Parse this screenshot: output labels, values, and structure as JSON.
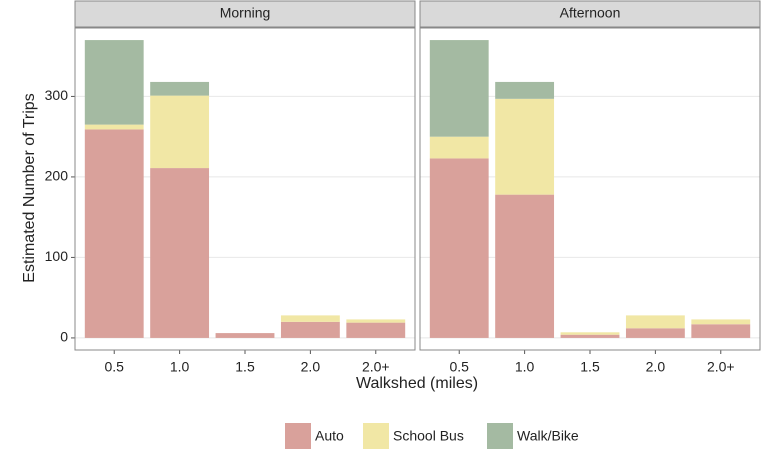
{
  "x_label": "Walkshed (miles)",
  "y_label": "Estimated Number of Trips",
  "chart_data": [
    {
      "type": "bar",
      "stacked": true,
      "title": "Morning",
      "categories": [
        "0.5",
        "1.0",
        "1.5",
        "2.0",
        "2.0+"
      ],
      "series": [
        {
          "name": "Auto",
          "color": "#d9a19b",
          "values": [
            259,
            211,
            6,
            20,
            19
          ]
        },
        {
          "name": "School Bus",
          "color": "#f1e7a5",
          "values": [
            6,
            90,
            0,
            8,
            4
          ]
        },
        {
          "name": "Walk/Bike",
          "color": "#a4baa2",
          "values": [
            105,
            17,
            0,
            0,
            0
          ]
        }
      ],
      "ylim": [
        -15,
        385
      ],
      "yticks": [
        0,
        100,
        200,
        300
      ],
      "grid": true
    },
    {
      "type": "bar",
      "stacked": true,
      "title": "Afternoon",
      "categories": [
        "0.5",
        "1.0",
        "1.5",
        "2.0",
        "2.0+"
      ],
      "series": [
        {
          "name": "Auto",
          "color": "#d9a19b",
          "values": [
            223,
            178,
            4,
            12,
            17
          ]
        },
        {
          "name": "School Bus",
          "color": "#f1e7a5",
          "values": [
            27,
            119,
            3,
            16,
            6
          ]
        },
        {
          "name": "Walk/Bike",
          "color": "#a4baa2",
          "values": [
            120,
            21,
            0,
            0,
            0
          ]
        }
      ],
      "ylim": [
        -15,
        385
      ],
      "yticks": [
        0,
        100,
        200,
        300
      ],
      "grid": true
    }
  ]
}
